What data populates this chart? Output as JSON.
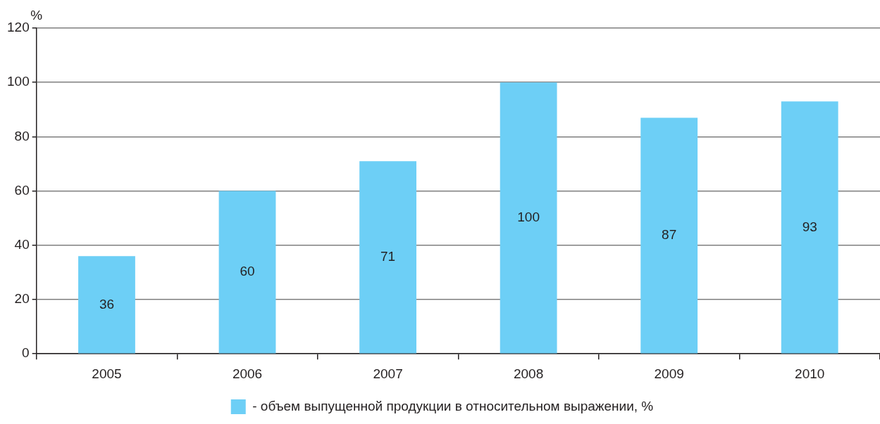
{
  "chart_data": {
    "type": "bar",
    "ylabel": "%",
    "categories": [
      "2005",
      "2006",
      "2007",
      "2008",
      "2009",
      "2010"
    ],
    "series": [
      {
        "name": "- объем выпущенной продукции в относительном выражении, %",
        "color": "#6dcff6",
        "values": [
          36,
          60,
          71,
          100,
          87,
          93
        ]
      }
    ],
    "ylim": [
      0,
      120
    ],
    "yticks": [
      0,
      20,
      40,
      60,
      80,
      100,
      120
    ],
    "grid": "y",
    "legend": "bottom",
    "data_labels": true
  }
}
